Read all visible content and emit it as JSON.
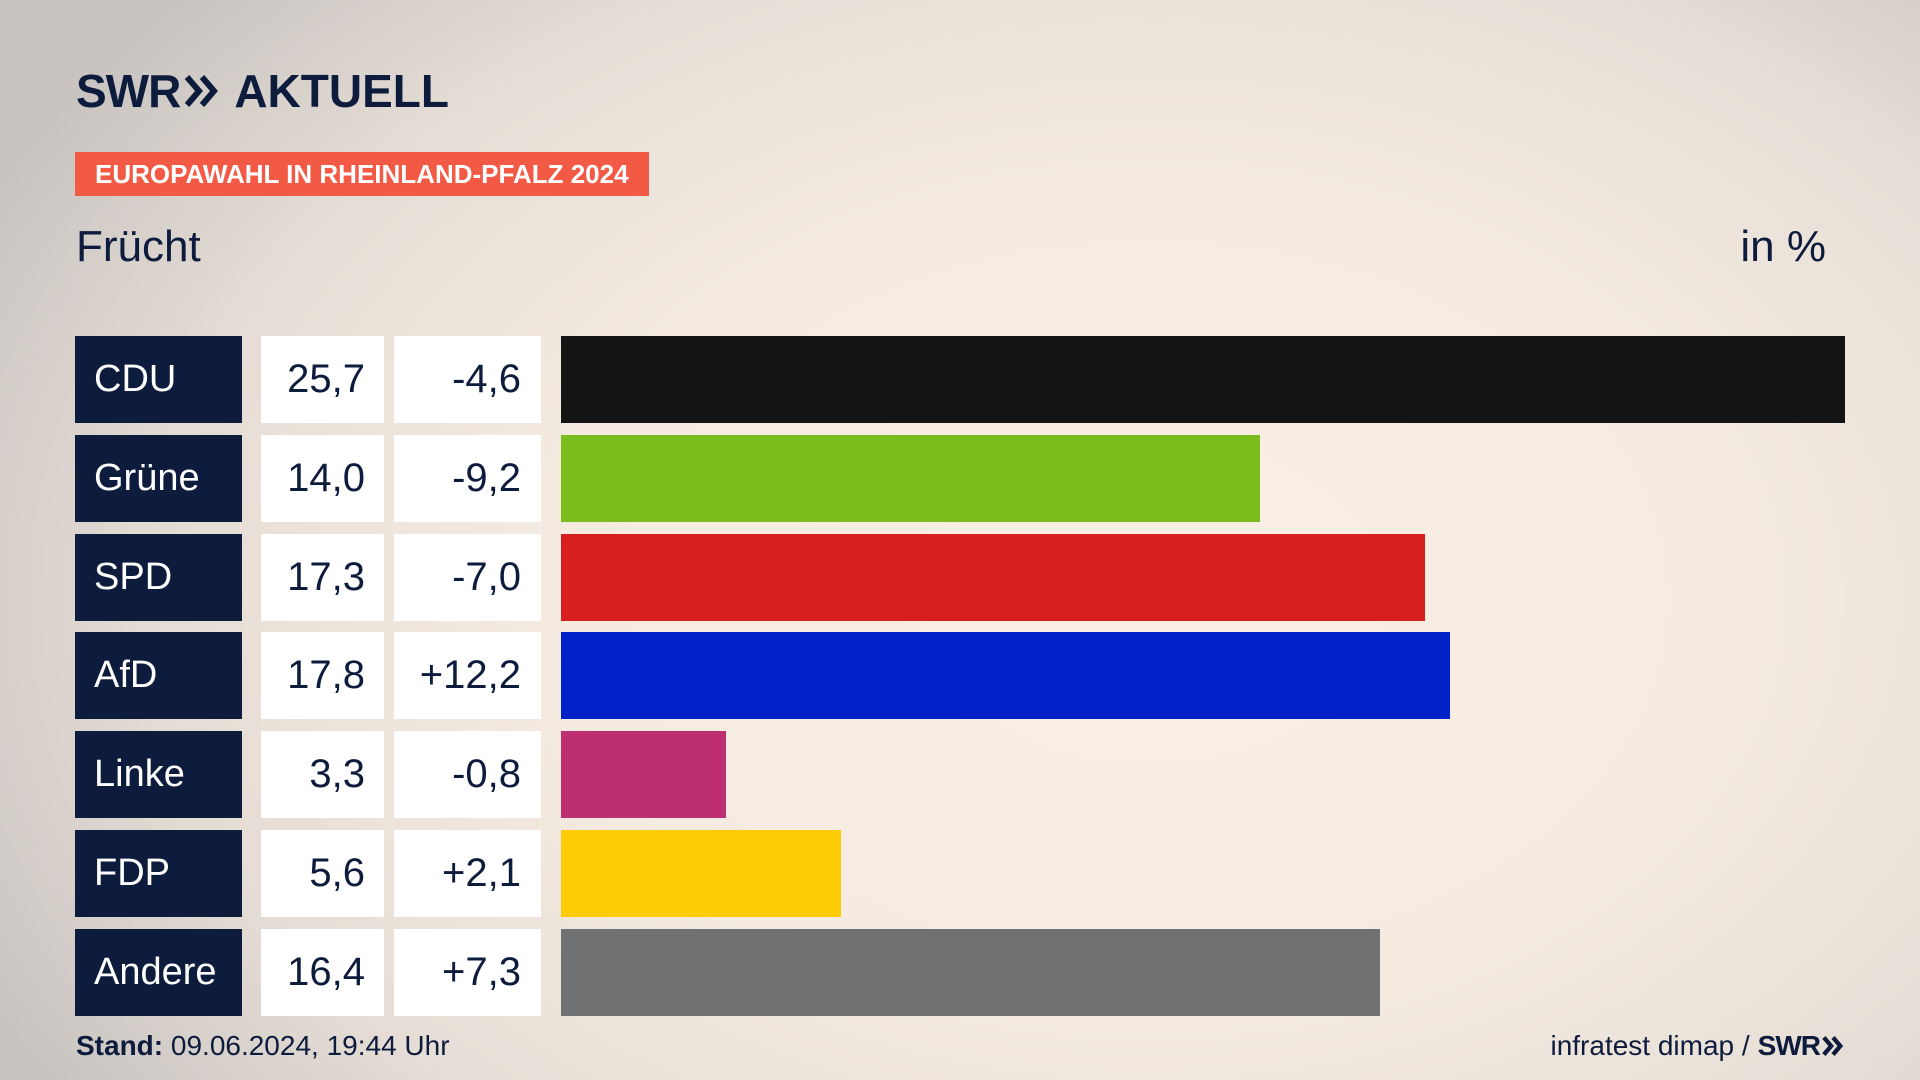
{
  "header": {
    "logo_swr": "SWR",
    "logo_aktuell": "AKTUELL",
    "banner": "EUROPAWAHL IN RHEINLAND-PFALZ 2024",
    "banner_color": "#f25a46",
    "brand_color": "#0d1b3c"
  },
  "chart_data": {
    "type": "bar",
    "orientation": "horizontal",
    "title": "Frücht",
    "unit_label": "in %",
    "categories": [
      "CDU",
      "Grüne",
      "SPD",
      "AfD",
      "Linke",
      "FDP",
      "Andere"
    ],
    "values": [
      25.7,
      14.0,
      17.3,
      17.8,
      3.3,
      5.6,
      16.4
    ],
    "value_labels": [
      "25,7",
      "14,0",
      "17,3",
      "17,8",
      "3,3",
      "5,6",
      "16,4"
    ],
    "diff_labels": [
      "-4,6",
      "-9,2",
      "-7,0",
      "+12,2",
      "-0,8",
      "+2,1",
      "+7,3"
    ],
    "colors": [
      "#141414",
      "#7abd1c",
      "#d81f1f",
      "#0020c8",
      "#be2f72",
      "#fdcc06",
      "#707172"
    ],
    "xlim": [
      0,
      25.7
    ]
  },
  "footer": {
    "stand_label": "Stand:",
    "stand_value": "09.06.2024, 19:44 Uhr",
    "source": "infratest dimap /",
    "source_brand": "SWR"
  }
}
